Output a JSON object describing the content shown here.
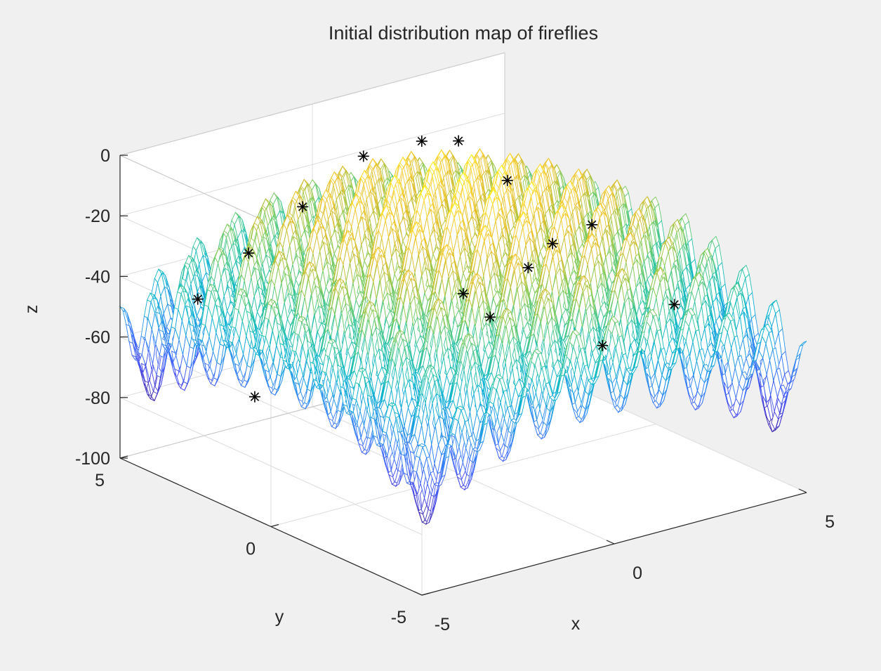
{
  "chart_data": {
    "type": "surface-mesh-3d",
    "title": "Initial distribution map of fireflies",
    "xlabel": "x",
    "ylabel": "y",
    "zlabel": "z",
    "xlim": [
      -5,
      5
    ],
    "ylim": [
      -5,
      5
    ],
    "zlim": [
      -100,
      0
    ],
    "x_ticks": [
      -5,
      0,
      5
    ],
    "y_ticks": [
      -5,
      0,
      5
    ],
    "z_ticks": [
      0,
      -20,
      -40,
      -60,
      -80,
      -100
    ],
    "x_tick_labels": [
      "-5",
      "0",
      "5"
    ],
    "y_tick_labels": [
      "-5",
      "0",
      "5"
    ],
    "z_tick_labels": [
      "0",
      "-20",
      "-40",
      "-60",
      "-80",
      "-100"
    ],
    "grid": true,
    "colormap": "parula",
    "surface_function": "-(x^2 + y^2 - 10*cos(2*pi*x) - 10*cos(2*pi*y) + 20)",
    "fireflies": [
      {
        "x": -4.95,
        "y": 0.6,
        "z": -60
      },
      {
        "x": -4.0,
        "y": 3.7,
        "z": -45
      },
      {
        "x": -2.6,
        "y": 3.8,
        "z": -35
      },
      {
        "x": -1.9,
        "y": 2.9,
        "z": -18
      },
      {
        "x": -1.5,
        "y": -2.8,
        "z": -30
      },
      {
        "x": 0.0,
        "y": 0.0,
        "z": -40
      },
      {
        "x": 0.45,
        "y": 1.95,
        "z": 0
      },
      {
        "x": 0.7,
        "y": 4.2,
        "z": -16
      },
      {
        "x": 1.3,
        "y": -1.3,
        "z": -22
      },
      {
        "x": 2.0,
        "y": 0.4,
        "z": -40
      },
      {
        "x": 1.5,
        "y": -2.7,
        "z": -50
      },
      {
        "x": 3.5,
        "y": 0.2,
        "z": -30
      },
      {
        "x": 4.7,
        "y": -1.0,
        "z": -55
      },
      {
        "x": 2.7,
        "y": 3.6,
        "z": -15
      },
      {
        "x": 2.4,
        "y": 1.6,
        "z": -18
      }
    ],
    "marker": "*",
    "marker_color": "#000000"
  }
}
